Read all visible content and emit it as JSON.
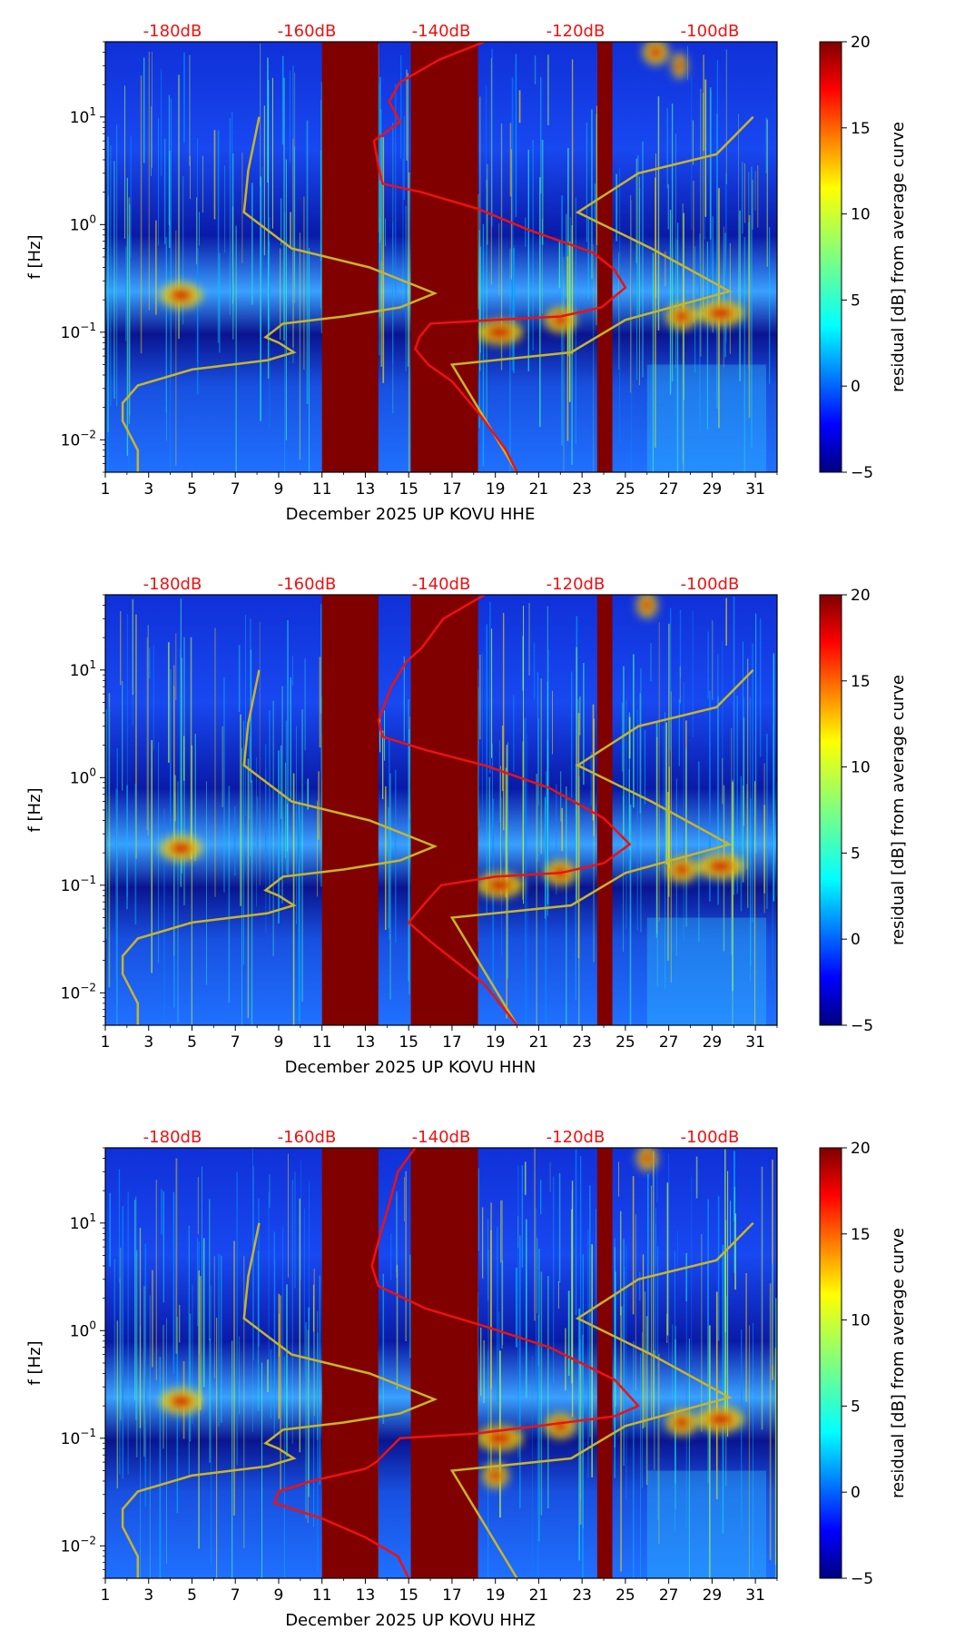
{
  "colors": {
    "background": "#00007f",
    "gap": "#800000",
    "yellow_curve": "#c8b52a",
    "red_curve": "#ee1111",
    "db_label": "#ee1111"
  },
  "chart_data": [
    {
      "type": "heatmap",
      "title": "",
      "xlabel": "December 2025 UP KOVU  HHE",
      "ylabel": "f [Hz]",
      "x_ticks": [
        "1",
        "3",
        "5",
        "7",
        "9",
        "11",
        "13",
        "15",
        "17",
        "19",
        "21",
        "23",
        "25",
        "27",
        "29",
        "31"
      ],
      "xlim": [
        1,
        32
      ],
      "ylim": [
        0.005,
        50
      ],
      "y_ticks": [
        {
          "v": 0.01,
          "b": "10",
          "e": "−2"
        },
        {
          "v": 0.1,
          "b": "10",
          "e": "−1"
        },
        {
          "v": 1,
          "b": "10",
          "e": "0"
        },
        {
          "v": 10,
          "b": "10",
          "e": "1"
        }
      ],
      "db_ticks": [
        "-180dB",
        "-160dB",
        "-140dB",
        "-120dB",
        "-100dB"
      ],
      "db_range": [
        -190,
        -90
      ],
      "colorbar": {
        "label": "residual [dB] from average curve",
        "ticks": [
          "20",
          "15",
          "10",
          "5",
          "0",
          "−5"
        ],
        "range": [
          -5,
          20
        ]
      },
      "gaps": [
        [
          11.0,
          13.6
        ],
        [
          15.1,
          18.2
        ],
        [
          23.7,
          24.4
        ]
      ],
      "yellow_curve": [
        [
          8.1,
          10
        ],
        [
          7.6,
          3.2
        ],
        [
          7.4,
          1.3
        ],
        [
          9.6,
          0.6
        ],
        [
          13.2,
          0.4
        ],
        [
          16.2,
          0.23
        ],
        [
          14.6,
          0.17
        ],
        [
          12.0,
          0.14
        ],
        [
          9.2,
          0.12
        ],
        [
          8.4,
          0.09
        ],
        [
          9.0,
          0.08
        ],
        [
          9.7,
          0.065
        ],
        [
          8.5,
          0.055
        ],
        [
          5.0,
          0.045
        ],
        [
          2.5,
          0.032
        ],
        [
          1.8,
          0.022
        ],
        [
          1.8,
          0.015
        ],
        [
          2.5,
          0.008
        ],
        [
          2.5,
          0.005
        ]
      ],
      "yellow_curve2": [
        [
          30.9,
          10
        ],
        [
          29.2,
          4.5
        ],
        [
          25.6,
          3.0
        ],
        [
          22.8,
          1.3
        ],
        [
          26.2,
          0.6
        ],
        [
          29.8,
          0.24
        ],
        [
          25.0,
          0.13
        ],
        [
          22.5,
          0.065
        ],
        [
          17.0,
          0.05
        ],
        [
          20.0,
          0.005
        ]
      ],
      "red_curve": [
        [
          18.5,
          50
        ],
        [
          16.4,
          34
        ],
        [
          14.6,
          21
        ],
        [
          14.1,
          14
        ],
        [
          14.6,
          9
        ],
        [
          13.4,
          6
        ],
        [
          13.6,
          3.5
        ],
        [
          13.8,
          2.4
        ],
        [
          15.6,
          2.0
        ],
        [
          18.2,
          1.4
        ],
        [
          20.5,
          0.9
        ],
        [
          23.5,
          0.55
        ],
        [
          24.5,
          0.38
        ],
        [
          25.0,
          0.26
        ],
        [
          23.9,
          0.17
        ],
        [
          22.0,
          0.14
        ],
        [
          19.0,
          0.13
        ],
        [
          16.0,
          0.12
        ],
        [
          15.5,
          0.09
        ],
        [
          15.3,
          0.07
        ],
        [
          15.9,
          0.05
        ],
        [
          17.0,
          0.035
        ],
        [
          18.2,
          0.018
        ],
        [
          19.5,
          0.008
        ],
        [
          20.0,
          0.005
        ]
      ],
      "hot_blobs": [
        [
          19.2,
          0.1,
          0.9
        ],
        [
          22.0,
          0.13,
          0.6
        ],
        [
          27.6,
          0.14,
          0.6
        ],
        [
          29.4,
          0.15,
          0.9
        ],
        [
          26.4,
          40,
          0.5
        ],
        [
          27.5,
          30,
          0.3
        ],
        [
          4.5,
          0.22,
          0.8
        ]
      ]
    },
    {
      "type": "heatmap",
      "title": "",
      "xlabel": "December 2025 UP KOVU  HHN",
      "ylabel": "f [Hz]",
      "x_ticks": [
        "1",
        "3",
        "5",
        "7",
        "9",
        "11",
        "13",
        "15",
        "17",
        "19",
        "21",
        "23",
        "25",
        "27",
        "29",
        "31"
      ],
      "xlim": [
        1,
        32
      ],
      "ylim": [
        0.005,
        50
      ],
      "y_ticks": [
        {
          "v": 0.01,
          "b": "10",
          "e": "−2"
        },
        {
          "v": 0.1,
          "b": "10",
          "e": "−1"
        },
        {
          "v": 1,
          "b": "10",
          "e": "0"
        },
        {
          "v": 10,
          "b": "10",
          "e": "1"
        }
      ],
      "db_ticks": [
        "-180dB",
        "-160dB",
        "-140dB",
        "-120dB",
        "-100dB"
      ],
      "db_range": [
        -190,
        -90
      ],
      "colorbar": {
        "label": "residual [dB] from average curve",
        "ticks": [
          "20",
          "15",
          "10",
          "5",
          "0",
          "−5"
        ],
        "range": [
          -5,
          20
        ]
      },
      "gaps": [
        [
          11.0,
          13.6
        ],
        [
          15.1,
          18.2
        ],
        [
          23.7,
          24.4
        ]
      ],
      "yellow_curve": [
        [
          8.1,
          10
        ],
        [
          7.6,
          3.2
        ],
        [
          7.4,
          1.3
        ],
        [
          9.6,
          0.6
        ],
        [
          13.2,
          0.4
        ],
        [
          16.2,
          0.23
        ],
        [
          14.6,
          0.17
        ],
        [
          12.0,
          0.14
        ],
        [
          9.2,
          0.12
        ],
        [
          8.4,
          0.09
        ],
        [
          9.0,
          0.08
        ],
        [
          9.7,
          0.065
        ],
        [
          8.5,
          0.055
        ],
        [
          5.0,
          0.045
        ],
        [
          2.5,
          0.032
        ],
        [
          1.8,
          0.022
        ],
        [
          1.8,
          0.015
        ],
        [
          2.5,
          0.008
        ],
        [
          2.5,
          0.005
        ]
      ],
      "yellow_curve2": [
        [
          30.9,
          10
        ],
        [
          29.2,
          4.5
        ],
        [
          25.6,
          3.0
        ],
        [
          22.8,
          1.3
        ],
        [
          26.2,
          0.6
        ],
        [
          29.8,
          0.24
        ],
        [
          25.0,
          0.13
        ],
        [
          22.5,
          0.065
        ],
        [
          17.0,
          0.05
        ],
        [
          20.0,
          0.005
        ]
      ],
      "red_curve": [
        [
          18.5,
          50
        ],
        [
          16.6,
          30
        ],
        [
          15.6,
          16
        ],
        [
          14.9,
          12
        ],
        [
          14.2,
          7
        ],
        [
          13.6,
          3.4
        ],
        [
          13.8,
          2.4
        ],
        [
          15.8,
          1.8
        ],
        [
          18.5,
          1.3
        ],
        [
          21.5,
          0.8
        ],
        [
          24.0,
          0.42
        ],
        [
          25.2,
          0.24
        ],
        [
          24.0,
          0.16
        ],
        [
          22.0,
          0.13
        ],
        [
          19.0,
          0.12
        ],
        [
          16.5,
          0.1
        ],
        [
          15.8,
          0.07
        ],
        [
          15.0,
          0.045
        ],
        [
          16.0,
          0.03
        ],
        [
          18.5,
          0.012
        ],
        [
          20.0,
          0.005
        ]
      ],
      "hot_blobs": [
        [
          19.2,
          0.1,
          0.9
        ],
        [
          22.0,
          0.13,
          0.6
        ],
        [
          27.6,
          0.14,
          0.6
        ],
        [
          29.4,
          0.15,
          0.9
        ],
        [
          26.0,
          40,
          0.4
        ],
        [
          4.5,
          0.22,
          0.8
        ]
      ]
    },
    {
      "type": "heatmap",
      "title": "",
      "xlabel": "December 2025 UP KOVU  HHZ",
      "ylabel": "f [Hz]",
      "x_ticks": [
        "1",
        "3",
        "5",
        "7",
        "9",
        "11",
        "13",
        "15",
        "17",
        "19",
        "21",
        "23",
        "25",
        "27",
        "29",
        "31"
      ],
      "xlim": [
        1,
        32
      ],
      "ylim": [
        0.005,
        50
      ],
      "y_ticks": [
        {
          "v": 0.01,
          "b": "10",
          "e": "−2"
        },
        {
          "v": 0.1,
          "b": "10",
          "e": "−1"
        },
        {
          "v": 1,
          "b": "10",
          "e": "0"
        },
        {
          "v": 10,
          "b": "10",
          "e": "1"
        }
      ],
      "db_ticks": [
        "-180dB",
        "-160dB",
        "-140dB",
        "-120dB",
        "-100dB"
      ],
      "db_range": [
        -190,
        -90
      ],
      "colorbar": {
        "label": "residual [dB] from average curve",
        "ticks": [
          "20",
          "15",
          "10",
          "5",
          "0",
          "−5"
        ],
        "range": [
          -5,
          20
        ]
      },
      "gaps": [
        [
          11.0,
          13.6
        ],
        [
          15.1,
          18.2
        ],
        [
          23.7,
          24.4
        ]
      ],
      "yellow_curve": [
        [
          8.1,
          10
        ],
        [
          7.6,
          3.2
        ],
        [
          7.4,
          1.3
        ],
        [
          9.6,
          0.6
        ],
        [
          13.2,
          0.4
        ],
        [
          16.2,
          0.23
        ],
        [
          14.6,
          0.17
        ],
        [
          12.0,
          0.14
        ],
        [
          9.2,
          0.12
        ],
        [
          8.4,
          0.09
        ],
        [
          9.0,
          0.08
        ],
        [
          9.7,
          0.065
        ],
        [
          8.5,
          0.055
        ],
        [
          5.0,
          0.045
        ],
        [
          2.5,
          0.032
        ],
        [
          1.8,
          0.022
        ],
        [
          1.8,
          0.015
        ],
        [
          2.5,
          0.008
        ],
        [
          2.5,
          0.005
        ]
      ],
      "yellow_curve2": [
        [
          30.9,
          10
        ],
        [
          29.2,
          4.5
        ],
        [
          25.6,
          3.0
        ],
        [
          22.8,
          1.3
        ],
        [
          26.2,
          0.6
        ],
        [
          29.8,
          0.24
        ],
        [
          25.0,
          0.13
        ],
        [
          22.5,
          0.065
        ],
        [
          17.0,
          0.05
        ],
        [
          20.0,
          0.005
        ]
      ],
      "red_curve": [
        [
          15.3,
          50
        ],
        [
          14.5,
          30
        ],
        [
          14.1,
          15
        ],
        [
          13.7,
          8
        ],
        [
          13.3,
          4
        ],
        [
          13.6,
          2.6
        ],
        [
          15.8,
          1.6
        ],
        [
          18.5,
          1.1
        ],
        [
          21.5,
          0.7
        ],
        [
          24.5,
          0.35
        ],
        [
          25.6,
          0.2
        ],
        [
          24.5,
          0.16
        ],
        [
          21.0,
          0.13
        ],
        [
          18.0,
          0.11
        ],
        [
          14.6,
          0.1
        ],
        [
          13.5,
          0.06
        ],
        [
          13.0,
          0.052
        ],
        [
          10.5,
          0.04
        ],
        [
          9.0,
          0.032
        ],
        [
          8.8,
          0.025
        ],
        [
          11.0,
          0.018
        ],
        [
          13.0,
          0.012
        ],
        [
          14.5,
          0.008
        ],
        [
          15.0,
          0.005
        ]
      ],
      "hot_blobs": [
        [
          19.2,
          0.1,
          0.9
        ],
        [
          22.0,
          0.13,
          0.6
        ],
        [
          27.6,
          0.14,
          0.6
        ],
        [
          29.4,
          0.15,
          0.9
        ],
        [
          19.0,
          0.045,
          0.5
        ],
        [
          26.0,
          40,
          0.4
        ],
        [
          4.5,
          0.22,
          0.8
        ]
      ]
    }
  ]
}
